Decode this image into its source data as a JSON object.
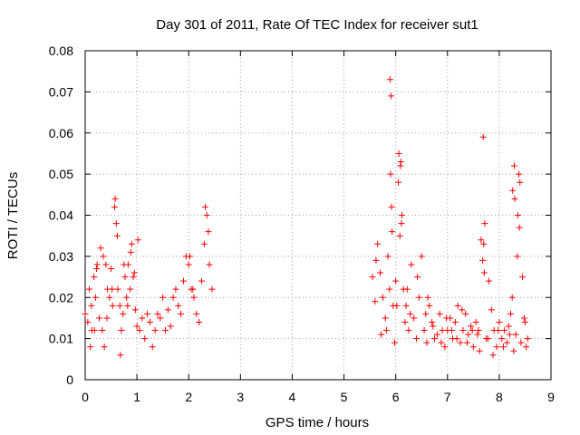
{
  "chart_data": {
    "type": "scatter",
    "title": "Day 301 of 2011, Rate Of TEC Index for receiver sut1",
    "xlabel": "GPS time / hours",
    "ylabel": "ROTI / TECUs",
    "xlim": [
      0,
      9
    ],
    "ylim": [
      0,
      0.08
    ],
    "x_ticks": [
      0,
      1,
      2,
      3,
      4,
      5,
      6,
      7,
      8,
      9
    ],
    "y_ticks": [
      "0",
      "0.01",
      "0.02",
      "0.03",
      "0.04",
      "0.05",
      "0.06",
      "0.07",
      "0.08"
    ],
    "grid": true,
    "marker": "+",
    "series_color": "#ff0000",
    "series": [
      {
        "name": "ROTI",
        "x": [
          0.0,
          0.05,
          0.1,
          0.13,
          0.17,
          0.2,
          0.23,
          0.27,
          0.3,
          0.33,
          0.37,
          0.4,
          0.43,
          0.47,
          0.5,
          0.53,
          0.57,
          0.6,
          0.63,
          0.67,
          0.7,
          0.73,
          0.77,
          0.8,
          0.83,
          0.87,
          0.9,
          0.93,
          0.97,
          1.0,
          1.05,
          1.1,
          1.15,
          1.2,
          1.25,
          1.3,
          1.35,
          1.4,
          1.45,
          1.5,
          1.55,
          1.6,
          1.65,
          1.7,
          1.75,
          1.8,
          1.85,
          1.9,
          1.95,
          2.0,
          2.05,
          2.1,
          2.15,
          2.2,
          2.25,
          2.3,
          2.35,
          2.4,
          2.45,
          0.08,
          0.12,
          0.18,
          0.22,
          0.35,
          0.42,
          0.52,
          0.58,
          0.62,
          0.68,
          0.75,
          0.82,
          0.88,
          0.95,
          1.02,
          2.02,
          2.08,
          2.32,
          2.38,
          5.55,
          5.6,
          5.65,
          5.7,
          5.75,
          5.8,
          5.85,
          5.88,
          5.9,
          5.92,
          5.95,
          6.0,
          6.05,
          6.08,
          6.1,
          6.12,
          6.15,
          6.2,
          6.25,
          6.3,
          6.35,
          6.4,
          6.45,
          6.5,
          6.55,
          6.6,
          6.65,
          6.7,
          6.75,
          6.8,
          6.85,
          6.9,
          6.95,
          7.0,
          7.05,
          7.1,
          7.15,
          7.2,
          7.25,
          7.3,
          7.35,
          7.4,
          7.45,
          7.5,
          7.55,
          7.6,
          7.65,
          7.68,
          7.7,
          7.72,
          7.75,
          7.8,
          7.85,
          7.9,
          7.95,
          8.0,
          8.05,
          8.1,
          8.15,
          8.2,
          8.25,
          8.3,
          8.35,
          8.38,
          8.4,
          8.45,
          8.5,
          8.55,
          5.62,
          5.72,
          5.82,
          5.98,
          6.02,
          6.18,
          6.22,
          6.28,
          6.42,
          6.58,
          6.62,
          6.72,
          6.88,
          6.98,
          7.08,
          7.18,
          7.28,
          7.38,
          7.48,
          7.58,
          7.62,
          7.78,
          7.88,
          7.98,
          8.08,
          8.18,
          8.22,
          8.28,
          8.32,
          8.42,
          8.48,
          8.52,
          5.89,
          5.91,
          5.93,
          6.06,
          6.09,
          6.11,
          7.69,
          7.71,
          8.36,
          8.39,
          8.26,
          8.29
        ],
        "y": [
          0.016,
          0.014,
          0.008,
          0.012,
          0.025,
          0.02,
          0.028,
          0.015,
          0.032,
          0.012,
          0.008,
          0.028,
          0.022,
          0.02,
          0.027,
          0.018,
          0.042,
          0.038,
          0.022,
          0.018,
          0.012,
          0.016,
          0.025,
          0.02,
          0.028,
          0.022,
          0.033,
          0.025,
          0.017,
          0.013,
          0.012,
          0.015,
          0.01,
          0.016,
          0.014,
          0.008,
          0.012,
          0.016,
          0.015,
          0.02,
          0.012,
          0.017,
          0.013,
          0.02,
          0.022,
          0.018,
          0.016,
          0.024,
          0.03,
          0.028,
          0.022,
          0.02,
          0.016,
          0.014,
          0.024,
          0.033,
          0.04,
          0.028,
          0.022,
          0.022,
          0.018,
          0.012,
          0.027,
          0.03,
          0.015,
          0.022,
          0.044,
          0.035,
          0.006,
          0.028,
          0.018,
          0.031,
          0.026,
          0.034,
          0.03,
          0.022,
          0.042,
          0.036,
          0.025,
          0.019,
          0.033,
          0.026,
          0.02,
          0.015,
          0.03,
          0.022,
          0.05,
          0.042,
          0.018,
          0.024,
          0.048,
          0.035,
          0.053,
          0.04,
          0.022,
          0.018,
          0.012,
          0.028,
          0.015,
          0.01,
          0.02,
          0.03,
          0.012,
          0.009,
          0.018,
          0.014,
          0.01,
          0.011,
          0.016,
          0.012,
          0.008,
          0.012,
          0.015,
          0.01,
          0.014,
          0.018,
          0.009,
          0.012,
          0.016,
          0.011,
          0.013,
          0.008,
          0.014,
          0.012,
          0.034,
          0.029,
          0.033,
          0.038,
          0.01,
          0.024,
          0.017,
          0.012,
          0.008,
          0.014,
          0.01,
          0.012,
          0.009,
          0.011,
          0.02,
          0.044,
          0.03,
          0.05,
          0.048,
          0.025,
          0.014,
          0.01,
          0.029,
          0.011,
          0.012,
          0.009,
          0.018,
          0.014,
          0.022,
          0.016,
          0.025,
          0.016,
          0.02,
          0.013,
          0.009,
          0.015,
          0.012,
          0.01,
          0.017,
          0.009,
          0.012,
          0.011,
          0.007,
          0.01,
          0.006,
          0.012,
          0.008,
          0.013,
          0.016,
          0.007,
          0.011,
          0.009,
          0.015,
          0.008,
          0.073,
          0.069,
          0.036,
          0.055,
          0.052,
          0.038,
          0.059,
          0.026,
          0.04,
          0.037,
          0.046,
          0.052
        ]
      }
    ]
  }
}
